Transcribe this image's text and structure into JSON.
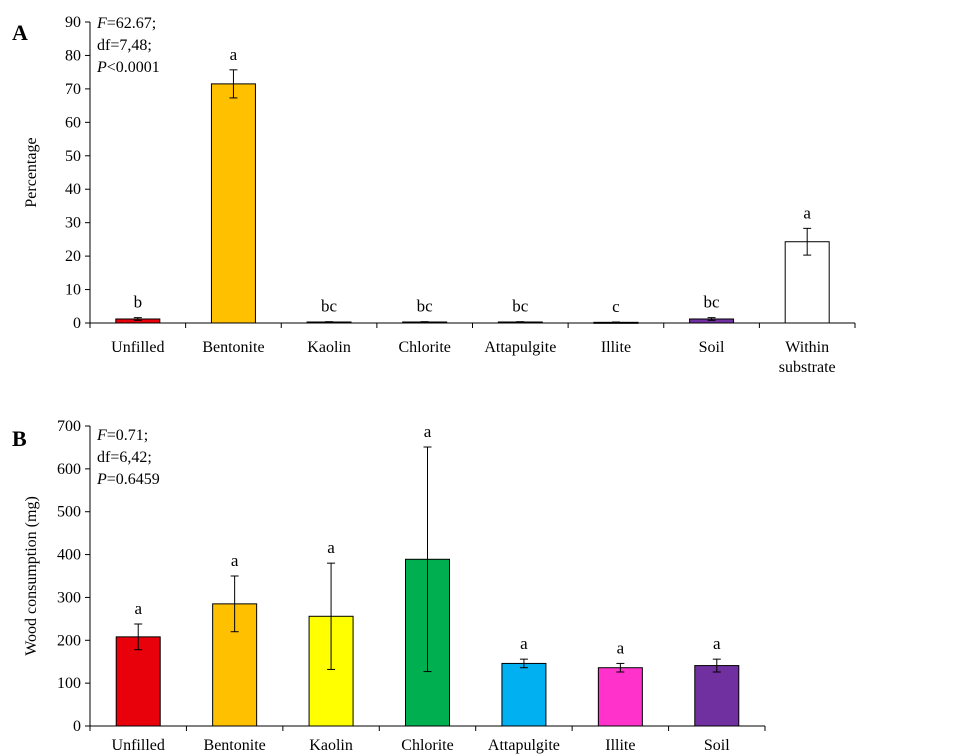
{
  "chart_data": [
    {
      "panel": "A",
      "type": "bar",
      "ylabel": "Percentage",
      "xlabel": "",
      "ylim": [
        0,
        90
      ],
      "yticks": [
        0,
        10,
        20,
        30,
        40,
        50,
        60,
        70,
        80,
        90
      ],
      "categories": [
        "Unfilled",
        "Bentonite",
        "Kaolin",
        "Chlorite",
        "Attapulgite",
        "Illite",
        "Soil",
        "Within|substrate"
      ],
      "values": [
        1.2,
        71.5,
        0.3,
        0.3,
        0.3,
        0.2,
        1.2,
        24.3
      ],
      "errors": [
        0.4,
        4.2,
        0.1,
        0.1,
        0.1,
        0.1,
        0.4,
        4.0
      ],
      "letters": [
        "b",
        "a",
        "bc",
        "bc",
        "bc",
        "c",
        "bc",
        "a"
      ],
      "colors": [
        "#e8000b",
        "#ffc000",
        "#ffff00",
        "#00b050",
        "#00b0f0",
        "#ff33cc",
        "#7030a0",
        "#ffffff"
      ],
      "stats": [
        {
          "italic": "F",
          "rest": "=62.67;"
        },
        {
          "italic": "",
          "rest": "df=7,48;"
        },
        {
          "italic": "P",
          "rest": "<0.0001"
        }
      ]
    },
    {
      "panel": "B",
      "type": "bar",
      "ylabel": "Wood consumption (mg)",
      "xlabel": "",
      "ylim": [
        0,
        700
      ],
      "yticks": [
        0,
        100,
        200,
        300,
        400,
        500,
        600,
        700
      ],
      "categories": [
        "Unfilled",
        "Bentonite",
        "Kaolin",
        "Chlorite",
        "Attapulgite",
        "Illite",
        "Soil"
      ],
      "values": [
        208,
        285,
        256,
        389,
        146,
        136,
        141
      ],
      "errors": [
        30,
        65,
        124,
        262,
        10,
        10,
        15
      ],
      "letters": [
        "a",
        "a",
        "a",
        "a",
        "a",
        "a",
        "a"
      ],
      "colors": [
        "#e8000b",
        "#ffc000",
        "#ffff00",
        "#00b050",
        "#00b0f0",
        "#ff33cc",
        "#7030a0"
      ],
      "stats": [
        {
          "italic": "F",
          "rest": "=0.71;"
        },
        {
          "italic": "",
          "rest": "df=6,42;"
        },
        {
          "italic": "P",
          "rest": "=0.6459"
        }
      ]
    }
  ]
}
